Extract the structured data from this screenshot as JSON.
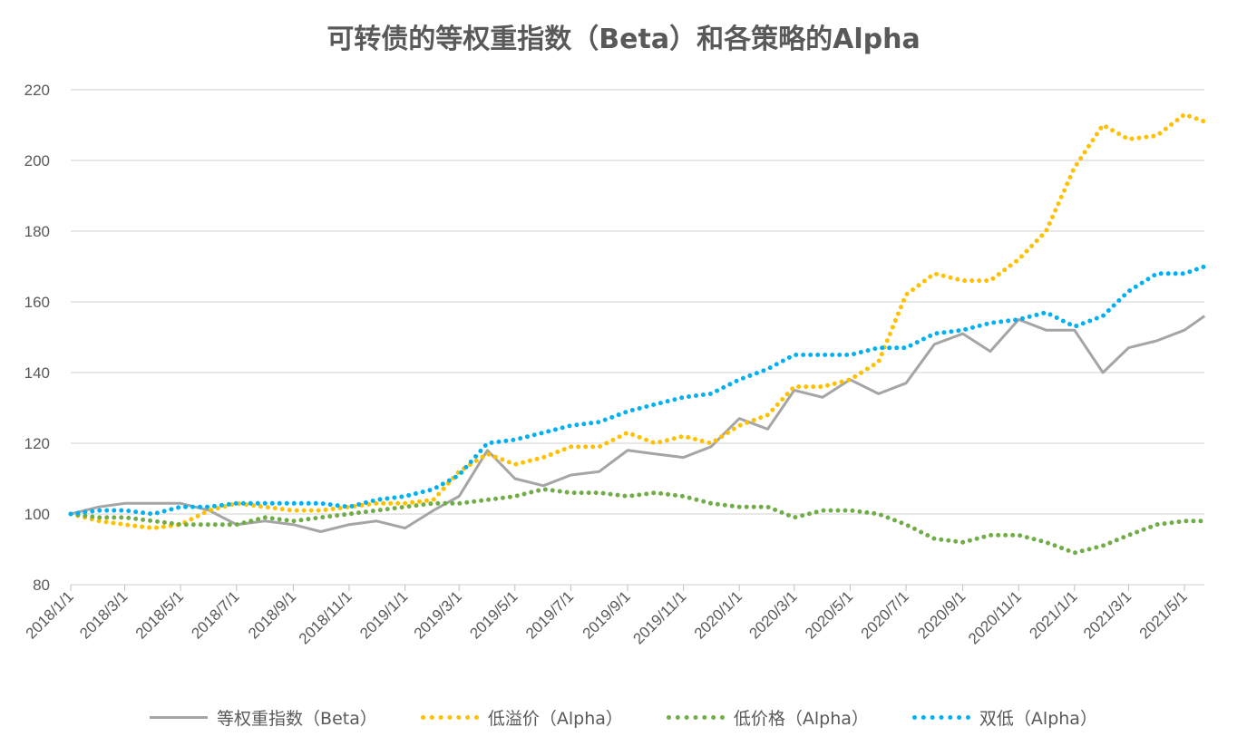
{
  "chart_data": {
    "type": "line",
    "title": "可转债的等权重指数（Beta）和各策略的Alpha",
    "xlabel": "",
    "ylabel": "",
    "ylim": [
      80,
      220
    ],
    "yticks": [
      80,
      100,
      120,
      140,
      160,
      180,
      200,
      220
    ],
    "xticks": [
      "2018/1/1",
      "2018/3/1",
      "2018/5/1",
      "2018/7/1",
      "2018/9/1",
      "2018/11/1",
      "2019/1/1",
      "2019/3/1",
      "2019/5/1",
      "2019/7/1",
      "2019/9/1",
      "2019/11/1",
      "2020/1/1",
      "2020/3/1",
      "2020/5/1",
      "2020/7/1",
      "2020/9/1",
      "2020/11/1",
      "2021/1/1",
      "2021/3/1",
      "2021/5/1"
    ],
    "grid": true,
    "legend_position": "bottom",
    "x": [
      "2018-01-01",
      "2018-02-01",
      "2018-03-01",
      "2018-04-01",
      "2018-05-01",
      "2018-06-01",
      "2018-07-01",
      "2018-08-01",
      "2018-09-01",
      "2018-10-01",
      "2018-11-01",
      "2018-12-01",
      "2019-01-01",
      "2019-02-01",
      "2019-03-01",
      "2019-04-01",
      "2019-05-01",
      "2019-06-01",
      "2019-07-01",
      "2019-08-01",
      "2019-09-01",
      "2019-10-01",
      "2019-11-01",
      "2019-12-01",
      "2020-01-01",
      "2020-02-01",
      "2020-03-01",
      "2020-04-01",
      "2020-05-01",
      "2020-06-01",
      "2020-07-01",
      "2020-08-01",
      "2020-09-01",
      "2020-10-01",
      "2020-11-01",
      "2020-12-01",
      "2021-01-01",
      "2021-02-01",
      "2021-03-01",
      "2021-04-01",
      "2021-05-01",
      "2021-05-23"
    ],
    "series": [
      {
        "name": "等权重指数（Beta）",
        "style": "solid",
        "color": "#A5A5A5",
        "values": [
          100,
          102,
          103,
          103,
          103,
          101,
          97,
          98,
          97,
          95,
          97,
          98,
          96,
          101,
          105,
          118,
          110,
          108,
          111,
          112,
          118,
          117,
          116,
          119,
          127,
          124,
          135,
          133,
          138,
          134,
          137,
          148,
          151,
          146,
          155,
          152,
          152,
          140,
          147,
          149,
          152,
          156
        ]
      },
      {
        "name": "低溢价（Alpha）",
        "style": "dotted",
        "color": "#FFC000",
        "values": [
          100,
          98,
          97,
          96,
          97,
          101,
          103,
          102,
          101,
          101,
          102,
          103,
          103,
          104,
          112,
          117,
          114,
          116,
          119,
          119,
          123,
          120,
          122,
          120,
          125,
          128,
          136,
          136,
          138,
          143,
          162,
          168,
          166,
          166,
          172,
          180,
          198,
          210,
          206,
          207,
          213,
          211
        ]
      },
      {
        "name": "低价格（Alpha）",
        "style": "dotted",
        "color": "#70AD47",
        "values": [
          100,
          99,
          99,
          98,
          97,
          97,
          97,
          99,
          98,
          99,
          100,
          101,
          102,
          103,
          103,
          104,
          105,
          107,
          106,
          106,
          105,
          106,
          105,
          103,
          102,
          102,
          99,
          101,
          101,
          100,
          97,
          93,
          92,
          94,
          94,
          92,
          89,
          91,
          94,
          97,
          98,
          98
        ]
      },
      {
        "name": "双低（Alpha）",
        "style": "dotted",
        "color": "#00B0F0",
        "values": [
          100,
          101,
          101,
          100,
          102,
          102,
          103,
          103,
          103,
          103,
          102,
          104,
          105,
          107,
          111,
          120,
          121,
          123,
          125,
          126,
          129,
          131,
          133,
          134,
          138,
          141,
          145,
          145,
          145,
          147,
          147,
          151,
          152,
          154,
          155,
          157,
          153,
          156,
          163,
          168,
          168,
          170
        ]
      }
    ]
  }
}
